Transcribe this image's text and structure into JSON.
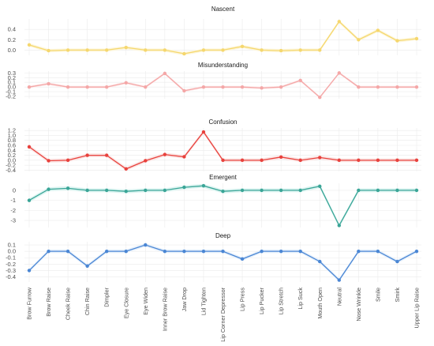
{
  "chart_data": {
    "type": "line",
    "categories": [
      "Brow Furrow",
      "Brow Raise",
      "Cheek Raise",
      "Chin Raise",
      "Dimpler",
      "Eye Closure",
      "Eye Widen",
      "Inner Brow Raise",
      "Jaw Drop",
      "Lid Tighten",
      "Lip Corner Depressor",
      "Lip Press",
      "Lip Pucker",
      "Lip Stretch",
      "Lip Suck",
      "Mouth Open",
      "Neutral",
      "Nose Wrinkle",
      "Smile",
      "Smirk",
      "Upper Lip Raise"
    ],
    "grid": true,
    "panels": [
      {
        "title": "Nascent",
        "color": "#f5d76e",
        "band_color": "#fdf5d6",
        "ylim": [
          -0.1,
          0.6
        ],
        "yticks": [
          0.0,
          0.2,
          0.4
        ],
        "ytick_labels": [
          "0.0",
          "0.2",
          "0.4"
        ],
        "values": [
          0.1,
          -0.01,
          0.0,
          0.0,
          0.0,
          0.05,
          0.0,
          0.0,
          -0.07,
          0.0,
          0.0,
          0.07,
          0.0,
          -0.01,
          0.0,
          0.0,
          0.55,
          0.2,
          0.38,
          0.18,
          0.22
        ]
      },
      {
        "title": "Misunderstanding",
        "color": "#f4a7a7",
        "band_color": "#fde9e9",
        "ylim": [
          -0.25,
          0.34
        ],
        "yticks": [
          -0.2,
          -0.1,
          0.0,
          0.1,
          0.2,
          0.3
        ],
        "ytick_labels": [
          "-0.2",
          "-0.1",
          "0.0",
          "0.1",
          "0.2",
          "0.3"
        ],
        "values": [
          0.0,
          0.07,
          0.0,
          0.0,
          0.0,
          0.09,
          0.0,
          0.29,
          -0.08,
          0.0,
          0.0,
          0.0,
          -0.02,
          0.0,
          0.14,
          -0.22,
          0.3,
          0.0,
          0.0,
          0.0,
          0.0
        ]
      },
      {
        "title": "Confusion",
        "color": "#e8413c",
        "band_color": "#fbe3e2",
        "ylim": [
          -0.45,
          1.3
        ],
        "yticks": [
          -0.4,
          -0.2,
          0.0,
          0.2,
          0.4,
          0.6,
          0.8,
          1.0,
          1.2
        ],
        "ytick_labels": [
          "-0.4",
          "-0.2",
          "0.0",
          "0.2",
          "0.4",
          "0.6",
          "0.8",
          "1.0",
          "1.2"
        ],
        "values": [
          0.54,
          -0.02,
          0.0,
          0.2,
          0.2,
          -0.35,
          -0.02,
          0.23,
          0.14,
          1.14,
          0.0,
          0.0,
          0.0,
          0.13,
          0.0,
          0.11,
          0.0,
          0.0,
          0.0,
          0.0,
          0.0
        ]
      },
      {
        "title": "Emergent",
        "color": "#3aa597",
        "band_color": "#d8f3ef",
        "ylim": [
          -3.7,
          0.7
        ],
        "yticks": [
          -3,
          -2,
          -1,
          0
        ],
        "ytick_labels": [
          "-3",
          "-2",
          "-1",
          "0"
        ],
        "values": [
          -1.0,
          0.1,
          0.2,
          0.0,
          0.0,
          -0.1,
          0.0,
          0.0,
          0.3,
          0.45,
          -0.1,
          0.0,
          0.0,
          0.0,
          0.0,
          0.4,
          -3.5,
          0.0,
          0.0,
          0.0,
          0.0
        ]
      },
      {
        "title": "Deep",
        "color": "#4a86d4",
        "band_color": "#e3eefb",
        "ylim": [
          -0.48,
          0.15
        ],
        "yticks": [
          -0.4,
          -0.3,
          -0.2,
          -0.1,
          0.0,
          0.1
        ],
        "ytick_labels": [
          "-0.4",
          "-0.3",
          "-0.2",
          "-0.1",
          "0.0",
          "0.1"
        ],
        "values": [
          -0.3,
          0.0,
          0.0,
          -0.23,
          0.0,
          0.0,
          0.1,
          0.0,
          0.0,
          0.0,
          0.0,
          -0.12,
          0.0,
          0.0,
          0.0,
          -0.16,
          -0.45,
          0.0,
          0.0,
          -0.16,
          0.0
        ]
      }
    ]
  }
}
